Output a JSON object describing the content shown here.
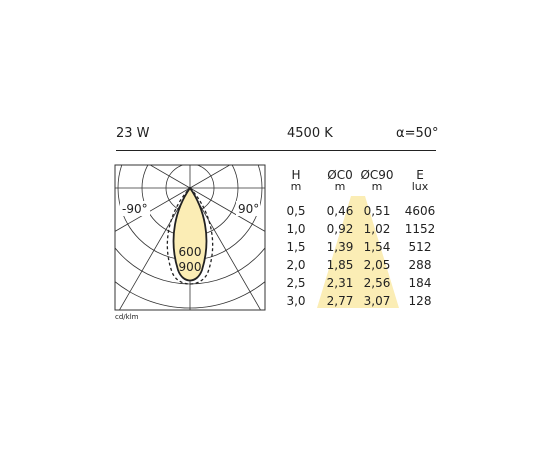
{
  "header": {
    "power": "23  W",
    "color_temp": "4500 K",
    "beam_angle": "α=50°"
  },
  "polar": {
    "left_angle": "-90°",
    "right_angle": "90°",
    "ring_label_inner": "600",
    "ring_label_outer": "900",
    "unit": "cd/klm"
  },
  "table": {
    "headers": [
      {
        "label": "H",
        "unit": "m"
      },
      {
        "label": "ØC0",
        "unit": "m"
      },
      {
        "label": "ØC90",
        "unit": "m"
      },
      {
        "label": "E",
        "unit": "lux"
      }
    ],
    "rows": [
      [
        "0,5",
        "0,46",
        "0,51",
        "4606"
      ],
      [
        "1,0",
        "0,92",
        "1,02",
        "1152"
      ],
      [
        "1,5",
        "1,39",
        "1,54",
        "512"
      ],
      [
        "2,0",
        "1,85",
        "2,05",
        "288"
      ],
      [
        "2,5",
        "2,31",
        "2,56",
        "184"
      ],
      [
        "3,0",
        "2,77",
        "3,07",
        "128"
      ]
    ]
  },
  "colors": {
    "light_fill": "#fbedb5",
    "line": "#222222"
  }
}
